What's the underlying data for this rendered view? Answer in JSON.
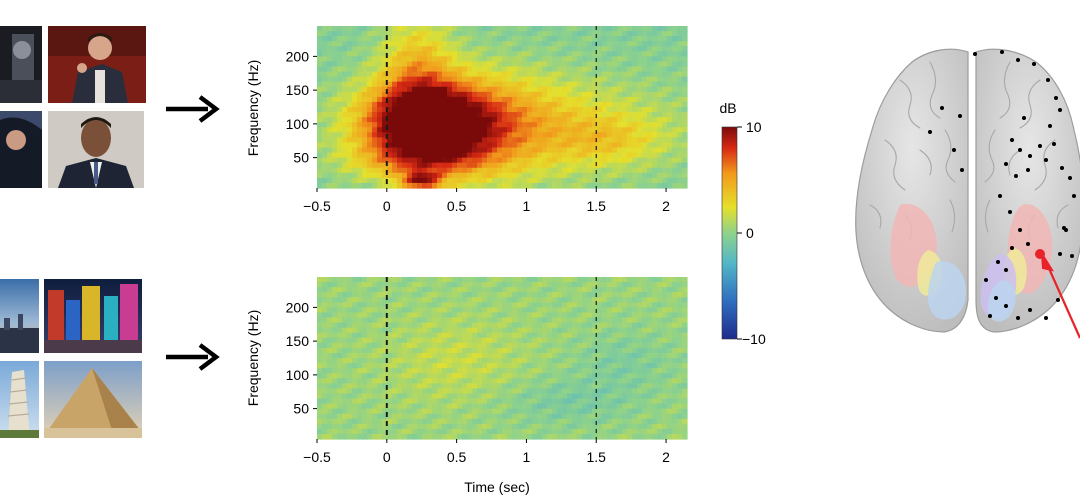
{
  "colors": {
    "colormap": [
      "#1f2a8c",
      "#2f6fbf",
      "#53b7c7",
      "#8fd28a",
      "#e5e02c",
      "#f29a1c",
      "#d72a14",
      "#7a0a0a"
    ],
    "brain_fill": "#d9d9d9",
    "brain_outline": "#9c9c9c",
    "region_pink": "#f2b6b6",
    "region_yellow": "#eeea9a",
    "region_blue": "#bcd3ee",
    "region_purple": "#cdbff0",
    "electrode": "#000000",
    "electrode_highlight": "#e8232a",
    "arrow": "#e8232a"
  },
  "stimuli": {
    "faces_label": "face photographs (people)",
    "places_label": "place photographs (landmarks)"
  },
  "colorbar": {
    "label": "dB",
    "ticks": [
      "10",
      "0",
      "−10"
    ],
    "vmin": -10,
    "vmax": 10
  },
  "xlabel": "Time (sec)",
  "chart_data": [
    {
      "type": "heatmap",
      "condition": "faces",
      "title": "",
      "xlabel": "",
      "ylabel": "Frequency (Hz)",
      "xlim": [
        -0.5,
        2.15
      ],
      "ylim": [
        5,
        245
      ],
      "xticks": [
        "−0.5",
        "0",
        "0.5",
        "1",
        "1.5",
        "2"
      ],
      "xtick_values": [
        -0.5,
        0,
        0.5,
        1,
        1.5,
        2
      ],
      "yticks": [
        "200",
        "150",
        "100",
        "50"
      ],
      "ytick_values": [
        200,
        150,
        100,
        50
      ],
      "markers_x": [
        0,
        1.5
      ],
      "features": [
        {
          "t": 0.27,
          "f": 100,
          "dt": 0.3,
          "df": 38,
          "db": 10
        },
        {
          "t": 0.55,
          "f": 100,
          "dt": 0.45,
          "df": 55,
          "db": 5
        },
        {
          "t": 0.22,
          "f": 180,
          "dt": 0.18,
          "df": 60,
          "db": 4
        },
        {
          "t": 1.1,
          "f": 95,
          "dt": 0.75,
          "df": 50,
          "db": 3
        },
        {
          "t": 1.6,
          "f": 75,
          "dt": 0.25,
          "df": 25,
          "db": 2
        },
        {
          "t": 0.25,
          "f": 15,
          "dt": 0.1,
          "df": 10,
          "db": 7
        },
        {
          "t": 0.22,
          "f": 45,
          "dt": 0.35,
          "df": 20,
          "db": 3
        }
      ],
      "baseline_db": -0.5
    },
    {
      "type": "heatmap",
      "condition": "places",
      "title": "",
      "xlabel": "Time (sec)",
      "ylabel": "Frequency (Hz)",
      "xlim": [
        -0.5,
        2.15
      ],
      "ylim": [
        5,
        245
      ],
      "xticks": [
        "−0.5",
        "0",
        "0.5",
        "1",
        "1.5",
        "2"
      ],
      "xtick_values": [
        -0.5,
        0,
        0.5,
        1,
        1.5,
        2
      ],
      "yticks": [
        "200",
        "150",
        "100",
        "50"
      ],
      "ytick_values": [
        200,
        150,
        100,
        50
      ],
      "markers_x": [
        0,
        1.5
      ],
      "features": [
        {
          "t": 0.5,
          "f": 120,
          "dt": 0.35,
          "df": 45,
          "db": 1.2
        },
        {
          "t": 1.3,
          "f": 60,
          "dt": 0.35,
          "df": 25,
          "db": -1.2
        },
        {
          "t": 1.7,
          "f": 120,
          "dt": 0.25,
          "df": 30,
          "db": -1.0
        }
      ],
      "baseline_db": 0.3
    }
  ]
}
